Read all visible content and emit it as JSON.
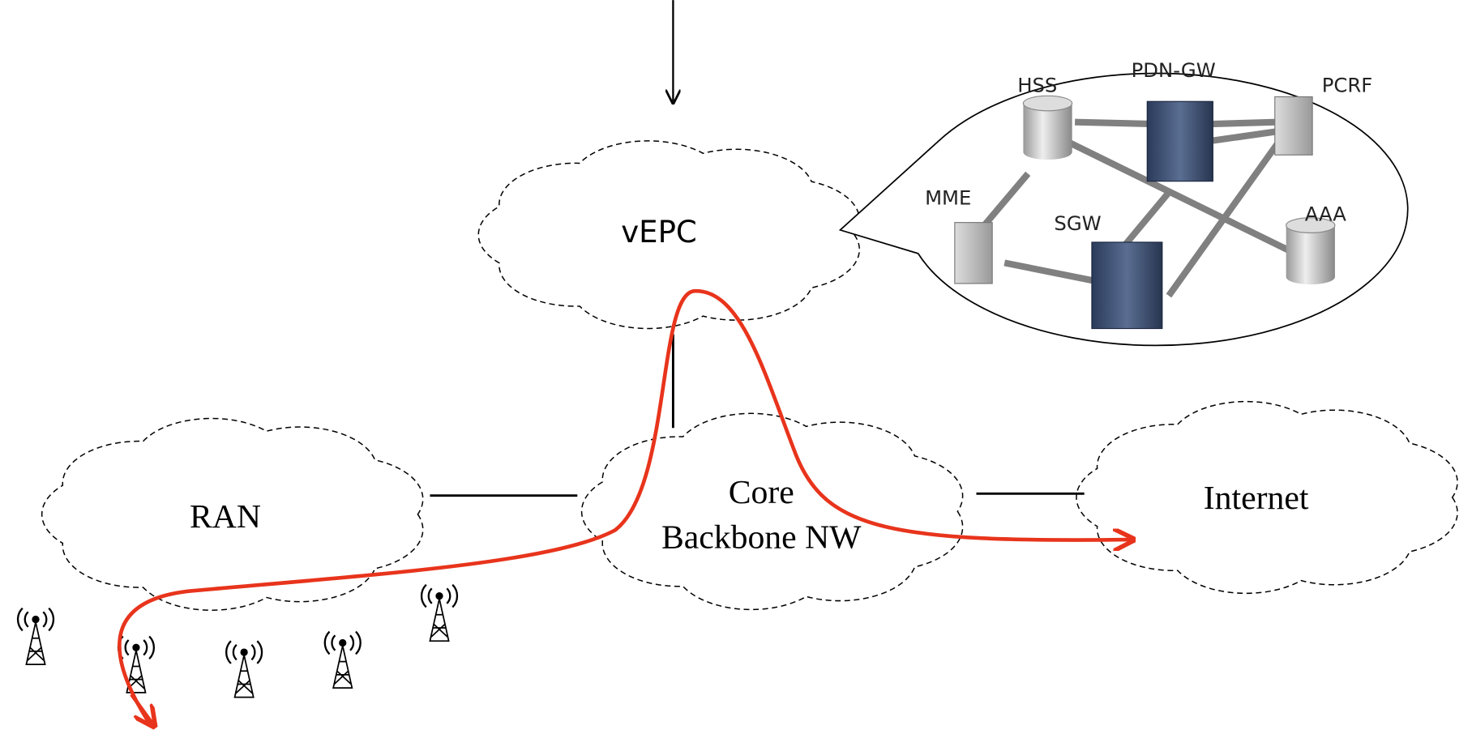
{
  "clouds": {
    "vepc": "vEPC",
    "ran": "RAN",
    "core": [
      "Core",
      "Backbone NW"
    ],
    "internet": "Internet"
  },
  "nodes": [
    {
      "label": "HSS"
    },
    {
      "label": "PDN-GW"
    },
    {
      "label": "PCRF"
    },
    {
      "label": "MME"
    },
    {
      "label": "SGW"
    },
    {
      "label": "AAA"
    }
  ]
}
